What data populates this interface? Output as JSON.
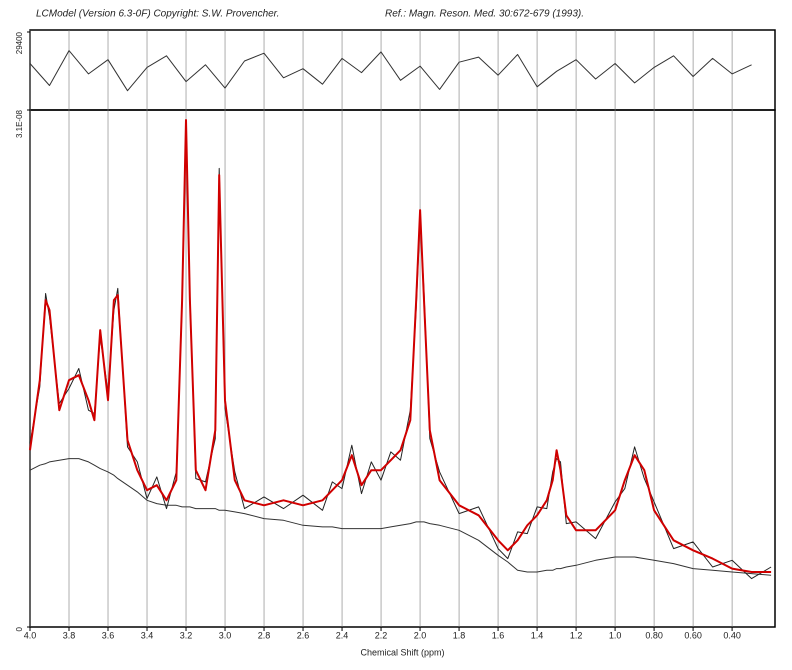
{
  "header": {
    "program": "LCModel (Version 6.3-0F) Copyright: S.W. Provencher.",
    "reference": "Ref.: Magn. Reson. Med. 30:672-679 (1993)."
  },
  "chart_data": [
    {
      "type": "line",
      "x_label": "Chemical Shift (ppm)",
      "xlim": [
        4.0,
        0.18
      ],
      "ylim": [
        0,
        3.1e-08
      ],
      "xticks": [
        {
          "value": 4.0,
          "label": "4.0"
        },
        {
          "value": 3.8,
          "label": "3.8"
        },
        {
          "value": 3.6,
          "label": "3.6"
        },
        {
          "value": 3.4,
          "label": "3.4"
        },
        {
          "value": 3.2,
          "label": "3.2"
        },
        {
          "value": 3.0,
          "label": "3.0"
        },
        {
          "value": 2.8,
          "label": "2.8"
        },
        {
          "value": 2.6,
          "label": "2.6"
        },
        {
          "value": 2.4,
          "label": "2.4"
        },
        {
          "value": 2.2,
          "label": "2.2"
        },
        {
          "value": 2.0,
          "label": "2.0"
        },
        {
          "value": 1.8,
          "label": "1.8"
        },
        {
          "value": 1.6,
          "label": "1.6"
        },
        {
          "value": 1.4,
          "label": "1.4"
        },
        {
          "value": 1.2,
          "label": "1.2"
        },
        {
          "value": 1.0,
          "label": "1.0"
        },
        {
          "value": 0.8,
          "label": "0.80"
        },
        {
          "value": 0.6,
          "label": "0.60"
        },
        {
          "value": 0.4,
          "label": "0.40"
        }
      ],
      "yticks": [
        0,
        {
          "value": 3.1e-08,
          "label": "3.1E-08"
        }
      ],
      "grid": true,
      "x": [
        4.0,
        3.95,
        3.92,
        3.9,
        3.85,
        3.8,
        3.75,
        3.7,
        3.67,
        3.64,
        3.6,
        3.57,
        3.55,
        3.5,
        3.45,
        3.4,
        3.35,
        3.3,
        3.25,
        3.22,
        3.2,
        3.18,
        3.15,
        3.1,
        3.05,
        3.03,
        3.0,
        2.95,
        2.9,
        2.8,
        2.7,
        2.6,
        2.5,
        2.45,
        2.4,
        2.35,
        2.3,
        2.25,
        2.2,
        2.15,
        2.1,
        2.05,
        2.02,
        2.0,
        1.98,
        1.95,
        1.9,
        1.8,
        1.7,
        1.6,
        1.55,
        1.5,
        1.45,
        1.4,
        1.35,
        1.32,
        1.3,
        1.28,
        1.25,
        1.2,
        1.1,
        1.0,
        0.95,
        0.9,
        0.85,
        0.8,
        0.7,
        0.6,
        0.5,
        0.4,
        0.3,
        0.2
      ],
      "series": [
        {
          "color": "#333333",
          "width": 1,
          "values": [
            9.4e-09,
            9.7e-09,
            9.8e-09,
            9.9e-09,
            1e-08,
            1.01e-08,
            1.01e-08,
            9.9e-09,
            9.7e-09,
            9.5e-09,
            9.3e-09,
            9.1e-09,
            8.9e-09,
            8.5e-09,
            8.1e-09,
            7.6e-09,
            7.4e-09,
            7.3e-09,
            7.3e-09,
            7.2e-09,
            7.2e-09,
            7.2e-09,
            7.1e-09,
            7.1e-09,
            7.1e-09,
            7e-09,
            7e-09,
            6.9e-09,
            6.8e-09,
            6.5e-09,
            6.4e-09,
            6.1e-09,
            6e-09,
            6e-09,
            5.9e-09,
            5.9e-09,
            5.9e-09,
            5.9e-09,
            5.9e-09,
            6e-09,
            6.1e-09,
            6.2e-09,
            6.3e-09,
            6.3e-09,
            6.3e-09,
            6.2e-09,
            6.1e-09,
            5.8e-09,
            5.2e-09,
            4.3e-09,
            3.9e-09,
            3.4e-09,
            3.3e-09,
            3.3e-09,
            3.4e-09,
            3.4e-09,
            3.5e-09,
            3.5e-09,
            3.6e-09,
            3.7e-09,
            4e-09,
            4.2e-09,
            4.2e-09,
            4.2e-09,
            4.1e-09,
            4e-09,
            3.8e-09,
            3.5e-09,
            3.4e-09,
            3.3e-09,
            3.2e-09,
            3.1e-09
          ]
        },
        {
          "color": "#222222",
          "width": 1,
          "values": [
            1.1e-08,
            1.44e-08,
            2e-08,
            1.86e-08,
            1.34e-08,
            1.43e-08,
            1.55e-08,
            1.3e-08,
            1.28e-08,
            1.74e-08,
            1.41e-08,
            1.9e-08,
            2.03e-08,
            1.08e-08,
            9.9e-09,
            7.7e-09,
            9e-09,
            7.1e-09,
            9.3e-09,
            1.92e-08,
            3e-08,
            2e-08,
            8.9e-09,
            8.7e-09,
            1.13e-08,
            2.75e-08,
            1.31e-08,
            9.3e-09,
            7.1e-09,
            7.8e-09,
            7.1e-09,
            7.9e-09,
            7e-09,
            8.7e-09,
            8.3e-09,
            1.09e-08,
            8e-09,
            9.9e-09,
            8.8e-09,
            1.05e-08,
            1e-08,
            1.3e-08,
            1.91e-08,
            2.46e-08,
            2.01e-08,
            1.13e-08,
            9.3e-09,
            6.8e-09,
            7.2e-09,
            4.7e-09,
            4.1e-09,
            5.7e-09,
            5.6e-09,
            7.2e-09,
            7.1e-09,
            9.3e-09,
            1.01e-08,
            9.9e-09,
            6.2e-09,
            6.3e-09,
            5.3e-09,
            7.5e-09,
            8.3e-09,
            1.08e-08,
            8.9e-09,
            7.5e-09,
            4.7e-09,
            5.1e-09,
            3.6e-09,
            4e-09,
            2.9e-09,
            3.6e-09
          ]
        },
        {
          "color": "#d00000",
          "width": 2,
          "values": [
            1.06e-08,
            1.48e-08,
            1.96e-08,
            1.9e-08,
            1.3e-08,
            1.48e-08,
            1.51e-08,
            1.36e-08,
            1.24e-08,
            1.78e-08,
            1.36e-08,
            1.96e-08,
            1.99e-08,
            1.12e-08,
            9.4e-09,
            8.2e-09,
            8.5e-09,
            7.6e-09,
            8.8e-09,
            1.96e-08,
            3.04e-08,
            1.96e-08,
            9.4e-09,
            8.2e-09,
            1.18e-08,
            2.71e-08,
            1.36e-08,
            8.8e-09,
            7.6e-09,
            7.3e-09,
            7.6e-09,
            7.3e-09,
            7.6e-09,
            8.2e-09,
            8.8e-09,
            1.03e-08,
            8.5e-09,
            9.4e-09,
            9.4e-09,
            1e-08,
            1.06e-08,
            1.24e-08,
            1.96e-08,
            2.5e-08,
            1.96e-08,
            1.18e-08,
            8.8e-09,
            7.3e-09,
            6.7e-09,
            5.2e-09,
            4.6e-09,
            5.2e-09,
            6.1e-09,
            6.7e-09,
            7.6e-09,
            8.8e-09,
            1.06e-08,
            9.4e-09,
            6.7e-09,
            5.8e-09,
            5.8e-09,
            7e-09,
            8.8e-09,
            1.03e-08,
            9.4e-09,
            7e-09,
            5.2e-09,
            4.6e-09,
            4.1e-09,
            3.5e-09,
            3.3e-09,
            3.3e-09
          ]
        }
      ]
    },
    {
      "type": "line",
      "xlim": [
        4.0,
        0.18
      ],
      "ylim": [
        -29400,
        29400
      ],
      "yticks": [
        29400
      ],
      "x": [
        4.0,
        3.9,
        3.8,
        3.7,
        3.6,
        3.5,
        3.4,
        3.3,
        3.2,
        3.1,
        3.0,
        2.9,
        2.8,
        2.7,
        2.6,
        2.5,
        2.4,
        2.3,
        2.2,
        2.1,
        2.0,
        1.9,
        1.8,
        1.7,
        1.6,
        1.5,
        1.4,
        1.3,
        1.2,
        1.1,
        1.0,
        0.9,
        0.8,
        0.7,
        0.6,
        0.5,
        0.4,
        0.3
      ],
      "series": [
        {
          "color": "#333333",
          "width": 1,
          "values": [
            5000,
            -12000,
            15000,
            -3000,
            8000,
            -16000,
            2000,
            11000,
            -9000,
            4000,
            -14000,
            7000,
            13000,
            -6000,
            1000,
            -11000,
            9000,
            -2000,
            14000,
            -8000,
            3000,
            -15000,
            6000,
            10000,
            -4000,
            12000,
            -13000,
            -1000,
            8000,
            -7000,
            5000,
            -10000,
            2000,
            11000,
            -5000,
            9000,
            -3000,
            4000
          ]
        }
      ]
    }
  ]
}
